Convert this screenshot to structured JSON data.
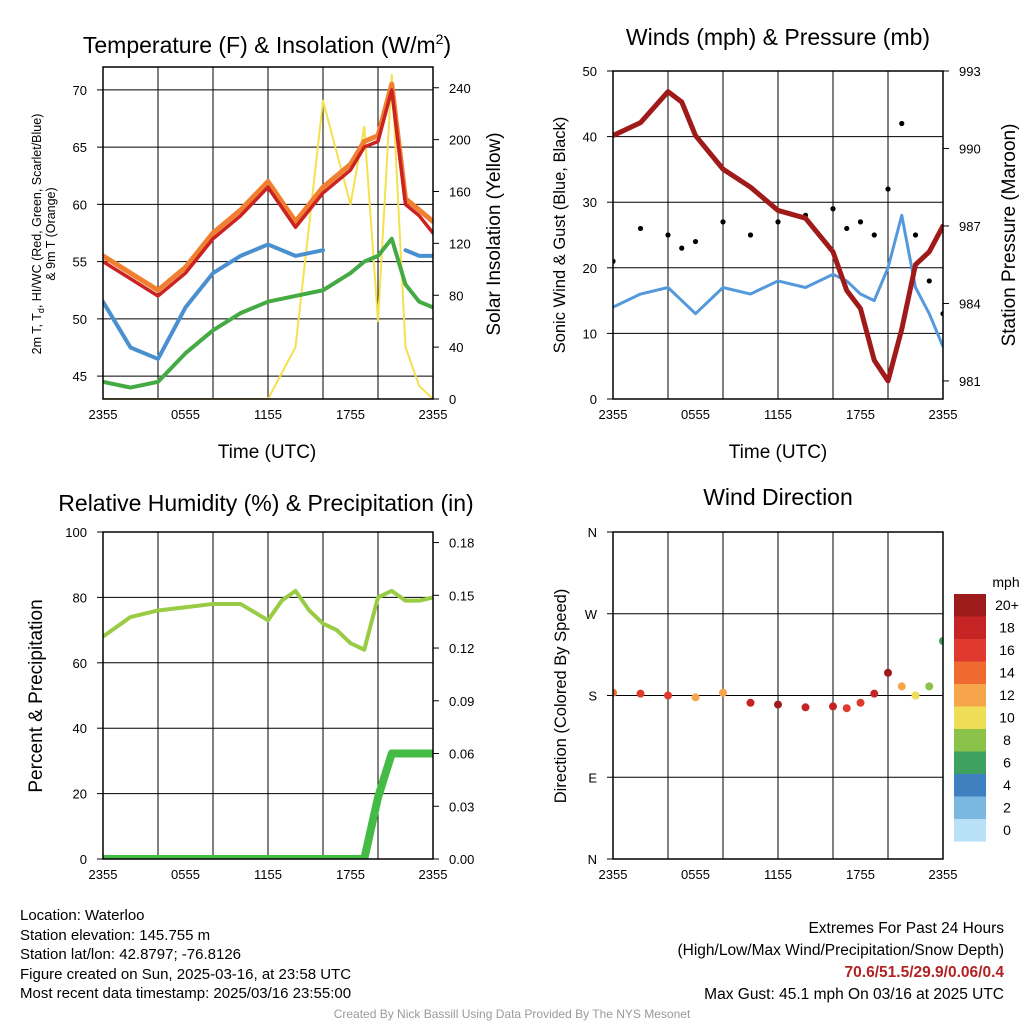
{
  "panels": {
    "temperature": {
      "title_main": "Temperature (F) & Insolation (W/m",
      "title_sup": "2",
      "title_close": ")",
      "ylabel_left_line1": "2m T, T",
      "ylabel_left_sub": "d",
      "ylabel_left_line1_rest": ", HI/WC (Red, Green, Scarlet/Blue)",
      "ylabel_left_line2": "& 9m T (Orange)",
      "ylabel_right": "Solar Insolation (Yellow)",
      "xlabel": "Time (UTC)"
    },
    "winds": {
      "title": "Winds (mph) & Pressure (mb)",
      "ylabel_left": "Sonic Wind & Gust (Blue, Black)",
      "ylabel_right": "Station Pressure (Maroon)",
      "xlabel": "Time (UTC)"
    },
    "humidity": {
      "title": "Relative Humidity (%) & Precipitation (in)",
      "ylabel_left": "Percent & Precipitation"
    },
    "direction": {
      "title": "Wind Direction",
      "ylabel_left": "Direction (Colored By Speed)",
      "legend_title": "mph"
    }
  },
  "colors": {
    "temp_red": "#cc2222",
    "temp_orange": "#f08030",
    "dewpoint_green": "#44aa44",
    "heatindex_blue": "#4a90d0",
    "insolation_yellow": "#f5e050",
    "wind_blue": "#5599dd",
    "gust_black": "#000000",
    "pressure_maroon": "#a01a1a",
    "rh_green": "#99cc44",
    "precip_green": "#44bb44"
  },
  "chart_data": [
    {
      "type": "line",
      "title": "Temperature (F) & Insolation (W/m2)",
      "xlabel": "Time (UTC)",
      "ylabel": "2m T, Td, HI/WC (Red, Green, Scarlet/Blue) & 9m T (Orange)",
      "y2label": "Solar Insolation (Yellow)",
      "x_ticks": [
        "2355",
        "0555",
        "1155",
        "1755",
        "2355"
      ],
      "ylim": [
        43,
        72
      ],
      "y_ticks": [
        45,
        50,
        55,
        60,
        65,
        70
      ],
      "y2lim": [
        0,
        256
      ],
      "y2_ticks": [
        0,
        40,
        80,
        120,
        160,
        200,
        240
      ],
      "x_hours": [
        0,
        2,
        4,
        6,
        8,
        10,
        12,
        14,
        16,
        18,
        19,
        20,
        21,
        22,
        23,
        24
      ],
      "series": [
        {
          "name": "2m T",
          "axis": "left",
          "values": [
            55,
            53.5,
            52,
            54,
            57,
            59,
            61.5,
            58,
            61,
            63,
            65,
            65.5,
            70,
            60,
            59,
            57.5
          ]
        },
        {
          "name": "9m T",
          "axis": "left",
          "values": [
            55.5,
            54,
            52.5,
            54.5,
            57.5,
            59.5,
            62,
            58.5,
            61.5,
            63.5,
            65.5,
            66,
            70.5,
            60.5,
            59.5,
            58.5
          ]
        },
        {
          "name": "Td",
          "axis": "left",
          "values": [
            44.5,
            44,
            44.5,
            47,
            49,
            50.5,
            51.5,
            52,
            52.5,
            54,
            55,
            55.5,
            57,
            53,
            51.5,
            51
          ]
        },
        {
          "name": "HI/WC",
          "axis": "left",
          "values": [
            51.5,
            47.5,
            46.5,
            51,
            54,
            55.5,
            56.5,
            55.5,
            56,
            null,
            null,
            null,
            null,
            56,
            55.5,
            55.5
          ]
        },
        {
          "name": "Solar Insolation",
          "axis": "right",
          "values": [
            0,
            0,
            0,
            0,
            0,
            0,
            0,
            40,
            230,
            150,
            210,
            60,
            250,
            40,
            10,
            0
          ]
        }
      ]
    },
    {
      "type": "line",
      "title": "Winds (mph) & Pressure (mb)",
      "xlabel": "Time (UTC)",
      "ylabel": "Sonic Wind & Gust (Blue, Black)",
      "y2label": "Station Pressure (Maroon)",
      "x_ticks": [
        "2355",
        "0555",
        "1155",
        "1755",
        "2355"
      ],
      "ylim": [
        0,
        50
      ],
      "y_ticks": [
        0,
        10,
        20,
        30,
        40,
        50
      ],
      "y2lim": [
        980.3,
        993
      ],
      "y2_ticks": [
        981,
        984,
        987,
        990,
        993
      ],
      "x_hours": [
        0,
        2,
        4,
        5,
        6,
        8,
        10,
        12,
        14,
        16,
        17,
        18,
        19,
        20,
        21,
        22,
        23,
        24
      ],
      "series": [
        {
          "name": "Sonic Wind",
          "axis": "left",
          "values": [
            14,
            16,
            17,
            15,
            13,
            17,
            16,
            18,
            17,
            19,
            18,
            16,
            15,
            20,
            28,
            17,
            13,
            8
          ]
        },
        {
          "name": "Gust",
          "axis": "left",
          "values": [
            21,
            26,
            25,
            23,
            24,
            27,
            25,
            27,
            28,
            29,
            26,
            27,
            25,
            32,
            42,
            25,
            18,
            13
          ]
        },
        {
          "name": "Station Pressure",
          "axis": "right",
          "values": [
            990.5,
            991,
            992.2,
            991.8,
            990.5,
            989.2,
            988.5,
            987.6,
            987.3,
            986,
            984.5,
            983.8,
            981.8,
            981,
            983,
            985.5,
            986,
            987
          ]
        }
      ]
    },
    {
      "type": "line",
      "title": "Relative Humidity (%) & Precipitation (in)",
      "ylabel": "Percent & Precipitation",
      "x_ticks": [
        "2355",
        "0555",
        "1155",
        "1755",
        "2355"
      ],
      "ylim": [
        0,
        100
      ],
      "y_ticks": [
        0,
        20,
        40,
        60,
        80,
        100
      ],
      "y2lim": [
        0,
        0.186
      ],
      "y2_ticks": [
        0.0,
        0.03,
        0.06,
        0.09,
        0.12,
        0.15,
        0.18
      ],
      "x_hours": [
        0,
        2,
        4,
        6,
        8,
        10,
        12,
        13,
        14,
        15,
        16,
        17,
        18,
        19,
        20,
        21,
        22,
        23,
        24
      ],
      "series": [
        {
          "name": "Relative Humidity",
          "axis": "left",
          "values": [
            68,
            74,
            76,
            77,
            78,
            78,
            73,
            79,
            82,
            76,
            72,
            70,
            66,
            64,
            80,
            82,
            79,
            79,
            80
          ]
        },
        {
          "name": "Precipitation",
          "axis": "right",
          "values": [
            0,
            0,
            0,
            0,
            0,
            0,
            0,
            0,
            0,
            0,
            0,
            0,
            0,
            0,
            0.035,
            0.06,
            0.06,
            0.06,
            0.06
          ]
        }
      ]
    },
    {
      "type": "scatter",
      "title": "Wind Direction",
      "ylabel": "Direction (Colored By Speed)",
      "x_ticks": [
        "2355",
        "0555",
        "1155",
        "1755",
        "2355"
      ],
      "y_ticks": [
        "N",
        "E",
        "S",
        "W",
        "N"
      ],
      "ylim": [
        0,
        360
      ],
      "x_hours": [
        0,
        2,
        4,
        6,
        8,
        10,
        12,
        14,
        16,
        17,
        18,
        19,
        20,
        21,
        22,
        23,
        24
      ],
      "series": [
        {
          "name": "Wind Direction",
          "values": [
            183,
            182,
            180,
            178,
            183,
            172,
            170,
            167,
            168,
            166,
            172,
            182,
            205,
            190,
            180,
            190,
            240
          ],
          "speeds": [
            14,
            16,
            17,
            13,
            12,
            19,
            20,
            19,
            18,
            17,
            16,
            18,
            20,
            12,
            10,
            9,
            6
          ]
        }
      ],
      "legend": {
        "title": "mph",
        "labels": [
          "20+",
          "18",
          "16",
          "14",
          "12",
          "10",
          "8",
          "6",
          "4",
          "2",
          "0"
        ],
        "colors": [
          "#9e1b1b",
          "#c62424",
          "#e03a2e",
          "#ef6a2e",
          "#f7a54a",
          "#eddd57",
          "#8ac24a",
          "#3fa160",
          "#3f80c1",
          "#7ab8e2",
          "#b8e1f7"
        ]
      }
    }
  ],
  "footer": {
    "location": "Location: Waterloo",
    "elevation": "Station elevation: 145.755 m",
    "latlon": "Station lat/lon: 42.8797; -76.8126",
    "created": "Figure created on Sun, 2025-03-16, at 23:58 UTC",
    "recent": "Most recent data timestamp: 2025/03/16 23:55:00",
    "extremes_title": "Extremes For Past 24 Hours",
    "extremes_legend": "(High/Low/Max Wind/Precipitation/Snow Depth)",
    "extremes_values": "70.6/51.5/29.9/0.06/0.4",
    "max_gust": "Max Gust: 45.1 mph On 03/16 at 2025 UTC",
    "credit": "Created By Nick Bassill Using Data Provided By The NYS Mesonet"
  }
}
